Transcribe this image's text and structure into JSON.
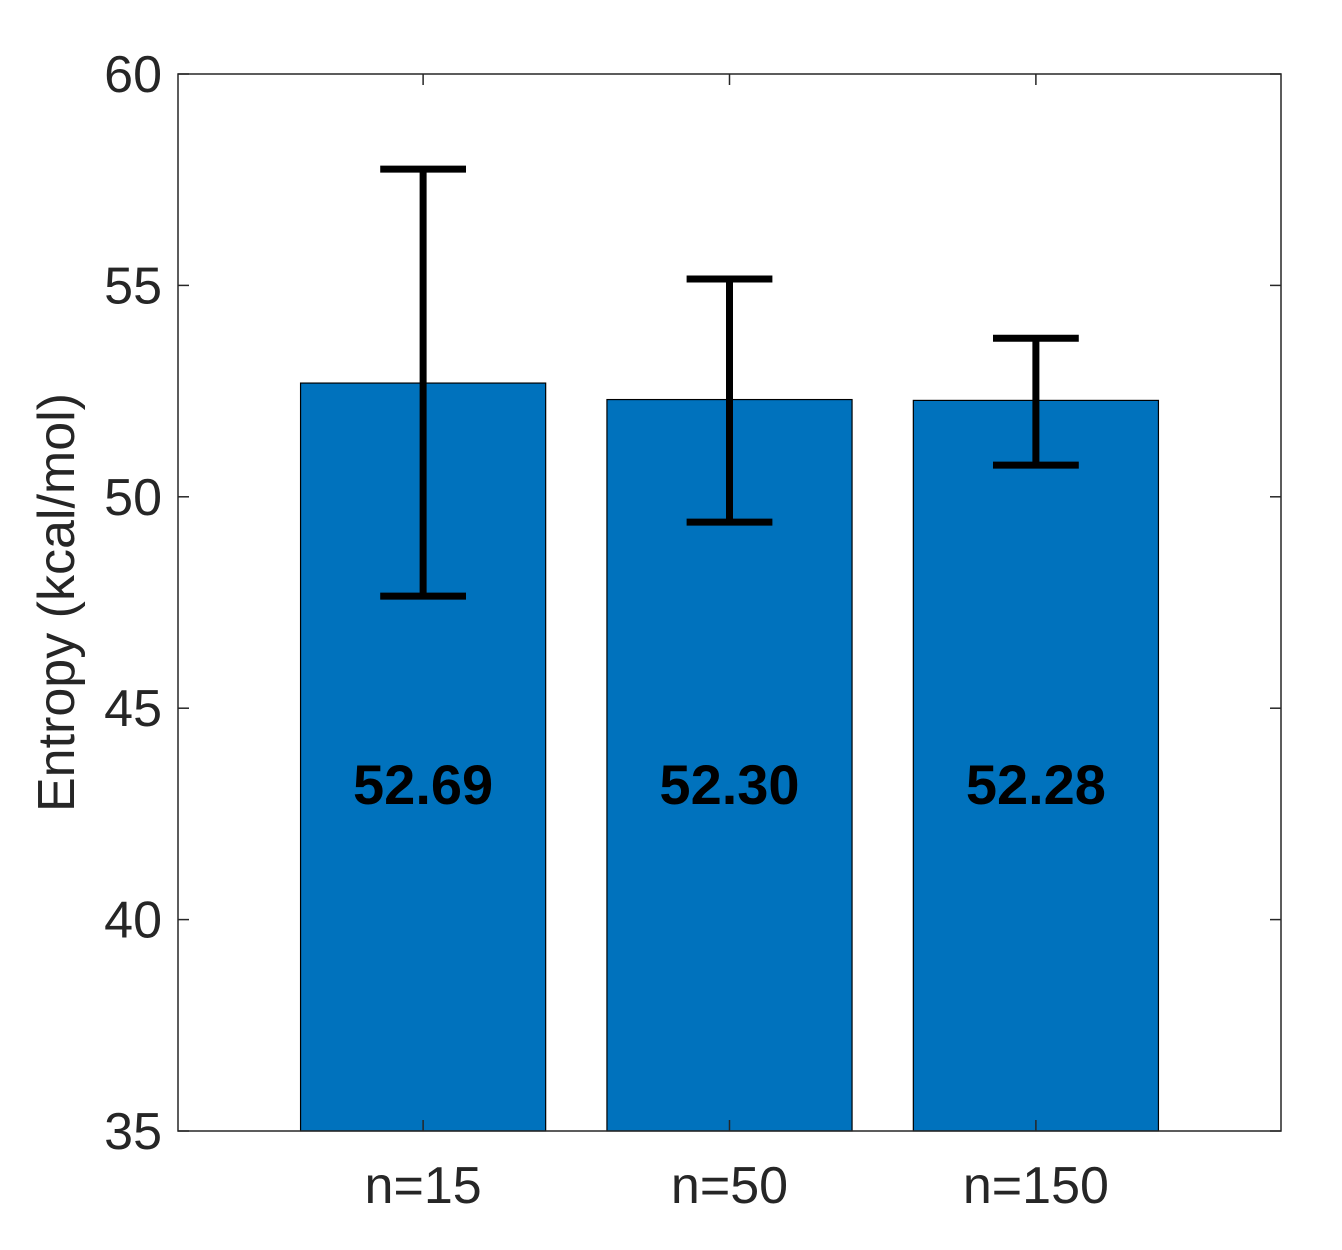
{
  "chart_data": {
    "type": "bar",
    "categories": [
      "n=15",
      "n=50",
      "n=150"
    ],
    "values": [
      52.69,
      52.3,
      52.28
    ],
    "value_labels": [
      "52.69",
      "52.30",
      "52.28"
    ],
    "error_bars": {
      "lower": [
        47.65,
        49.4,
        50.75
      ],
      "upper": [
        57.75,
        55.15,
        53.75
      ]
    },
    "ylabel": "Entropy (kcal/mol)",
    "ylim": [
      35,
      60
    ],
    "yticks": [
      35,
      40,
      45,
      50,
      55,
      60
    ],
    "ytick_labels": [
      "35",
      "40",
      "45",
      "50",
      "55",
      "60"
    ],
    "x_range": [
      0.2,
      3.8
    ],
    "grid": false,
    "colors": {
      "bar": "#0072BD",
      "error": "#000000",
      "axis": "#262626"
    }
  }
}
